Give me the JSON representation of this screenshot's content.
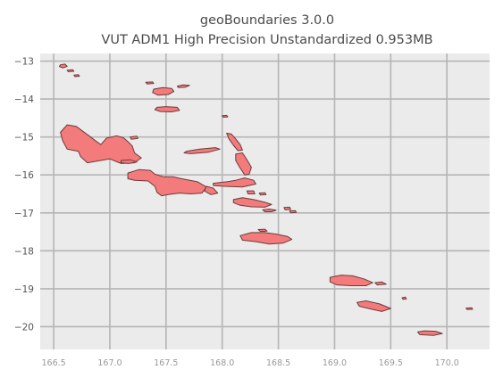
{
  "title": {
    "line1": "geoBoundaries 3.0.0",
    "line2": "VUT ADM1 High Precision Unstandardized 0.953MB"
  },
  "map": {
    "x_range": [
      166.38,
      170.38
    ],
    "y_range": [
      -20.6,
      -12.8
    ],
    "x_ticks": [
      "166.5",
      "167.0",
      "167.5",
      "168.0",
      "168.5",
      "169.0",
      "169.5",
      "170.0"
    ],
    "x_tick_values": [
      166.5,
      167.0,
      167.5,
      168.0,
      168.5,
      169.0,
      169.5,
      170.0
    ],
    "y_ticks": [
      "−13",
      "−14",
      "−15",
      "−16",
      "−17",
      "−18",
      "−19",
      "−20"
    ],
    "y_tick_values": [
      -13,
      -14,
      -15,
      -16,
      -17,
      -18,
      -19,
      -20
    ],
    "colors": {
      "background": "#ebebeb",
      "grid": "#b5b5b5",
      "fill": "#f47b7b",
      "edge": "#6b3b3b"
    },
    "islands": [
      {
        "name": "torres-north",
        "pts": [
          [
            166.56,
            -13.1
          ],
          [
            166.6,
            -13.08
          ],
          [
            166.62,
            -13.14
          ],
          [
            166.58,
            -13.18
          ],
          [
            166.55,
            -13.14
          ]
        ]
      },
      {
        "name": "torres-2",
        "pts": [
          [
            166.62,
            -13.24
          ],
          [
            166.67,
            -13.23
          ],
          [
            166.68,
            -13.27
          ],
          [
            166.63,
            -13.28
          ]
        ]
      },
      {
        "name": "torres-3",
        "pts": [
          [
            166.68,
            -13.37
          ],
          [
            166.72,
            -13.36
          ],
          [
            166.73,
            -13.4
          ],
          [
            166.69,
            -13.41
          ]
        ]
      },
      {
        "name": "gaua-small",
        "pts": [
          [
            167.32,
            -13.56
          ],
          [
            167.38,
            -13.55
          ],
          [
            167.39,
            -13.59
          ],
          [
            167.33,
            -13.6
          ]
        ]
      },
      {
        "name": "vanua-lava",
        "pts": [
          [
            167.39,
            -13.74
          ],
          [
            167.47,
            -13.7
          ],
          [
            167.55,
            -13.72
          ],
          [
            167.57,
            -13.8
          ],
          [
            167.52,
            -13.88
          ],
          [
            167.43,
            -13.9
          ],
          [
            167.38,
            -13.83
          ]
        ]
      },
      {
        "name": "mota-lava",
        "pts": [
          [
            167.6,
            -13.66
          ],
          [
            167.65,
            -13.63
          ],
          [
            167.71,
            -13.64
          ],
          [
            167.67,
            -13.69
          ],
          [
            167.61,
            -13.7
          ]
        ]
      },
      {
        "name": "gaua",
        "pts": [
          [
            167.42,
            -14.22
          ],
          [
            167.5,
            -14.2
          ],
          [
            167.6,
            -14.22
          ],
          [
            167.62,
            -14.3
          ],
          [
            167.55,
            -14.34
          ],
          [
            167.45,
            -14.33
          ],
          [
            167.4,
            -14.28
          ]
        ]
      },
      {
        "name": "maewo-north",
        "pts": [
          [
            168.0,
            -14.44
          ],
          [
            168.04,
            -14.43
          ],
          [
            168.05,
            -14.47
          ],
          [
            168.01,
            -14.48
          ]
        ]
      },
      {
        "name": "espiritu-santo",
        "pts": [
          [
            166.56,
            -14.88
          ],
          [
            166.62,
            -14.68
          ],
          [
            166.7,
            -14.72
          ],
          [
            166.76,
            -14.85
          ],
          [
            166.82,
            -14.98
          ],
          [
            166.88,
            -15.12
          ],
          [
            166.92,
            -15.2
          ],
          [
            166.97,
            -15.03
          ],
          [
            167.06,
            -14.97
          ],
          [
            167.12,
            -15.02
          ],
          [
            167.16,
            -15.12
          ],
          [
            167.2,
            -15.24
          ],
          [
            167.22,
            -15.42
          ],
          [
            167.28,
            -15.55
          ],
          [
            167.22,
            -15.68
          ],
          [
            167.1,
            -15.7
          ],
          [
            167.0,
            -15.58
          ],
          [
            166.92,
            -15.62
          ],
          [
            166.8,
            -15.68
          ],
          [
            166.74,
            -15.52
          ],
          [
            166.72,
            -15.38
          ],
          [
            166.62,
            -15.32
          ],
          [
            166.58,
            -15.1
          ]
        ]
      },
      {
        "name": "malo",
        "pts": [
          [
            167.1,
            -15.62
          ],
          [
            167.18,
            -15.6
          ],
          [
            167.24,
            -15.66
          ],
          [
            167.17,
            -15.7
          ],
          [
            167.1,
            -15.68
          ]
        ]
      },
      {
        "name": "santo-east",
        "pts": [
          [
            167.18,
            -15.0
          ],
          [
            167.24,
            -14.98
          ],
          [
            167.25,
            -15.04
          ],
          [
            167.19,
            -15.06
          ]
        ]
      },
      {
        "name": "ambae",
        "pts": [
          [
            167.68,
            -15.38
          ],
          [
            167.8,
            -15.32
          ],
          [
            167.94,
            -15.28
          ],
          [
            167.98,
            -15.32
          ],
          [
            167.88,
            -15.4
          ],
          [
            167.72,
            -15.44
          ],
          [
            167.66,
            -15.42
          ]
        ]
      },
      {
        "name": "maewo",
        "pts": [
          [
            168.04,
            -14.9
          ],
          [
            168.08,
            -14.92
          ],
          [
            168.12,
            -15.05
          ],
          [
            168.16,
            -15.2
          ],
          [
            168.18,
            -15.35
          ],
          [
            168.14,
            -15.36
          ],
          [
            168.1,
            -15.22
          ],
          [
            168.06,
            -15.05
          ]
        ]
      },
      {
        "name": "pentecost",
        "pts": [
          [
            168.12,
            -15.45
          ],
          [
            168.18,
            -15.42
          ],
          [
            168.22,
            -15.6
          ],
          [
            168.26,
            -15.8
          ],
          [
            168.24,
            -15.98
          ],
          [
            168.2,
            -16.0
          ],
          [
            168.16,
            -15.82
          ],
          [
            168.12,
            -15.62
          ]
        ]
      },
      {
        "name": "malekula",
        "pts": [
          [
            167.16,
            -15.95
          ],
          [
            167.26,
            -15.86
          ],
          [
            167.36,
            -15.88
          ],
          [
            167.4,
            -15.98
          ],
          [
            167.48,
            -16.05
          ],
          [
            167.56,
            -16.05
          ],
          [
            167.64,
            -16.1
          ],
          [
            167.78,
            -16.18
          ],
          [
            167.86,
            -16.32
          ],
          [
            167.82,
            -16.48
          ],
          [
            167.72,
            -16.5
          ],
          [
            167.62,
            -16.48
          ],
          [
            167.52,
            -16.52
          ],
          [
            167.46,
            -16.55
          ],
          [
            167.42,
            -16.46
          ],
          [
            167.4,
            -16.3
          ],
          [
            167.34,
            -16.16
          ],
          [
            167.22,
            -16.14
          ],
          [
            167.16,
            -16.1
          ]
        ]
      },
      {
        "name": "malekula-east",
        "pts": [
          [
            167.86,
            -16.3
          ],
          [
            167.92,
            -16.35
          ],
          [
            167.96,
            -16.48
          ],
          [
            167.9,
            -16.52
          ],
          [
            167.84,
            -16.42
          ]
        ]
      },
      {
        "name": "ambrym",
        "pts": [
          [
            167.92,
            -16.22
          ],
          [
            168.04,
            -16.18
          ],
          [
            168.12,
            -16.14
          ],
          [
            168.2,
            -16.08
          ],
          [
            168.28,
            -16.14
          ],
          [
            168.3,
            -16.24
          ],
          [
            168.18,
            -16.32
          ],
          [
            168.02,
            -16.3
          ],
          [
            167.92,
            -16.28
          ]
        ]
      },
      {
        "name": "paama",
        "pts": [
          [
            168.22,
            -16.42
          ],
          [
            168.28,
            -16.42
          ],
          [
            168.29,
            -16.5
          ],
          [
            168.23,
            -16.5
          ]
        ]
      },
      {
        "name": "lopevi",
        "pts": [
          [
            168.33,
            -16.48
          ],
          [
            168.38,
            -16.47
          ],
          [
            168.39,
            -16.52
          ],
          [
            168.34,
            -16.53
          ]
        ]
      },
      {
        "name": "epi",
        "pts": [
          [
            168.1,
            -16.65
          ],
          [
            168.18,
            -16.6
          ],
          [
            168.28,
            -16.65
          ],
          [
            168.38,
            -16.72
          ],
          [
            168.44,
            -16.78
          ],
          [
            168.38,
            -16.85
          ],
          [
            168.26,
            -16.84
          ],
          [
            168.16,
            -16.8
          ],
          [
            168.1,
            -16.73
          ]
        ]
      },
      {
        "name": "shepherd-1",
        "pts": [
          [
            168.36,
            -16.92
          ],
          [
            168.42,
            -16.9
          ],
          [
            168.48,
            -16.93
          ],
          [
            168.44,
            -16.97
          ],
          [
            168.38,
            -16.97
          ]
        ]
      },
      {
        "name": "shepherd-2",
        "pts": [
          [
            168.55,
            -16.86
          ],
          [
            168.6,
            -16.85
          ],
          [
            168.61,
            -16.91
          ],
          [
            168.56,
            -16.92
          ]
        ]
      },
      {
        "name": "shepherd-3",
        "pts": [
          [
            168.6,
            -16.95
          ],
          [
            168.65,
            -16.94
          ],
          [
            168.66,
            -16.99
          ],
          [
            168.61,
            -17.0
          ]
        ]
      },
      {
        "name": "efate",
        "pts": [
          [
            168.16,
            -17.6
          ],
          [
            168.26,
            -17.52
          ],
          [
            168.38,
            -17.52
          ],
          [
            168.48,
            -17.56
          ],
          [
            168.58,
            -17.62
          ],
          [
            168.62,
            -17.7
          ],
          [
            168.54,
            -17.8
          ],
          [
            168.42,
            -17.82
          ],
          [
            168.3,
            -17.76
          ],
          [
            168.18,
            -17.72
          ]
        ]
      },
      {
        "name": "efate-north",
        "pts": [
          [
            168.32,
            -17.44
          ],
          [
            168.38,
            -17.43
          ],
          [
            168.4,
            -17.48
          ],
          [
            168.34,
            -17.49
          ]
        ]
      },
      {
        "name": "erromango",
        "pts": [
          [
            168.96,
            -18.7
          ],
          [
            169.06,
            -18.64
          ],
          [
            169.16,
            -18.66
          ],
          [
            169.26,
            -18.74
          ],
          [
            169.34,
            -18.84
          ],
          [
            169.28,
            -18.92
          ],
          [
            169.14,
            -18.92
          ],
          [
            169.02,
            -18.9
          ],
          [
            168.96,
            -18.82
          ]
        ]
      },
      {
        "name": "erromango-east",
        "pts": [
          [
            169.36,
            -18.84
          ],
          [
            169.42,
            -18.82
          ],
          [
            169.46,
            -18.88
          ],
          [
            169.38,
            -18.9
          ]
        ]
      },
      {
        "name": "tanna",
        "pts": [
          [
            169.2,
            -19.36
          ],
          [
            169.28,
            -19.32
          ],
          [
            169.4,
            -19.4
          ],
          [
            169.5,
            -19.52
          ],
          [
            169.42,
            -19.6
          ],
          [
            169.3,
            -19.52
          ],
          [
            169.22,
            -19.46
          ]
        ]
      },
      {
        "name": "aniwa",
        "pts": [
          [
            169.6,
            -19.24
          ],
          [
            169.63,
            -19.22
          ],
          [
            169.64,
            -19.27
          ],
          [
            169.61,
            -19.28
          ]
        ]
      },
      {
        "name": "aneityum",
        "pts": [
          [
            169.74,
            -20.14
          ],
          [
            169.8,
            -20.11
          ],
          [
            169.9,
            -20.12
          ],
          [
            169.96,
            -20.18
          ],
          [
            169.88,
            -20.23
          ],
          [
            169.76,
            -20.21
          ]
        ]
      },
      {
        "name": "futuna",
        "pts": [
          [
            170.17,
            -19.51
          ],
          [
            170.22,
            -19.5
          ],
          [
            170.23,
            -19.54
          ],
          [
            170.18,
            -19.55
          ]
        ]
      }
    ]
  }
}
